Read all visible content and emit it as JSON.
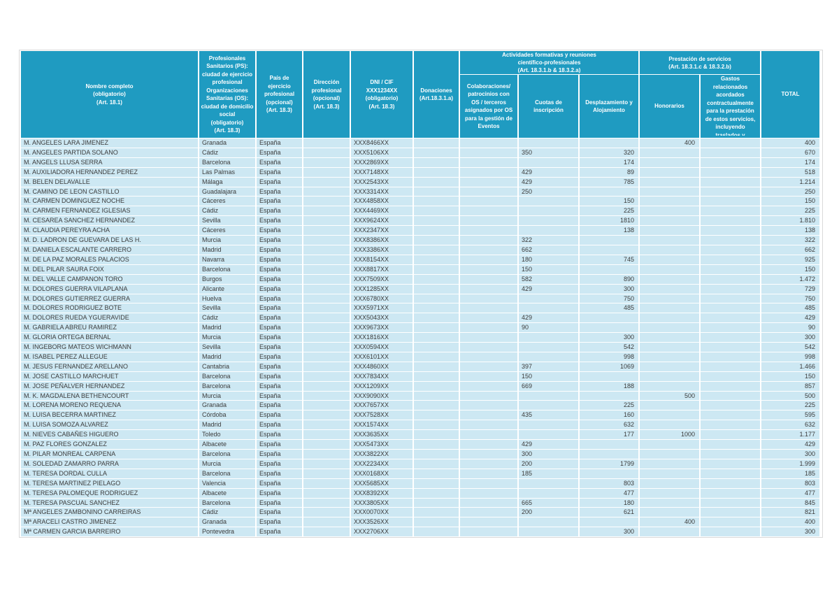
{
  "table": {
    "header": {
      "nombre": "Nombre completo\n(obligatorio)\n(Art. 18.1)",
      "ps_os": "Profesionales\nSanitarios (PS):\nciudad de ejercicio\nprofesional\nOrganizaciones\nSanitarias (OS):\nciudad de domicilio\nsocial\n(obligatorio)\n(Art. 18.3)",
      "pais": "País de ejercicio\nprofesional\n(opcional)\n(Art. 18.3)",
      "direccion": "Dirección\nprofesional\n(opcional)\n(Art. 18.3)",
      "dni": "DNI / CIF\nXXX1234XX\n(obligatorio)\n(Art. 18.3)",
      "donaciones": "Donaciones\n(Art.18.3.1.a)",
      "grupo_actividades": "Actividades formativas y reuniones\ncientífico-profesionales\n(Art. 18.3.1.b & 18.3.2.a)",
      "colaboraciones": "Colaboraciones/\npatrocinios con\nOS / terceros\nasignados por OS\npara la gestión de\nEventos",
      "cuotas": "Cuotas de\ninscripción",
      "desplazamiento": "Desplazamiento y\nAlojamiento",
      "grupo_prestacion": "Prestación de servicios\n(Art. 18.3.1.c & 18.3.2.b)",
      "honorarios": "Honorarios",
      "gastos": "Gastos\nrelacionados\nacordados\ncontractualmente\npara la prestación\nde estos servicios,\nincluyendo\ntraslados y",
      "total": "TOTAL"
    },
    "column_keys": [
      "nombre",
      "ciudad",
      "pais",
      "direccion",
      "dni",
      "donaciones",
      "colaboraciones",
      "cuotas",
      "desplazamiento",
      "honorarios",
      "gastos",
      "total"
    ],
    "rows": [
      [
        "M. ANGELES LARA JIMENEZ",
        "Granada",
        "España",
        "",
        "XXX8466XX",
        "",
        "",
        "",
        "",
        "400",
        "",
        "400"
      ],
      [
        "M. ANGELES PARTIDA SOLANO",
        "Cádiz",
        "España",
        "",
        "XXX5106XX",
        "",
        "",
        "350",
        "320",
        "",
        "",
        "670"
      ],
      [
        "M. ANGELS LLUSA SERRA",
        "Barcelona",
        "España",
        "",
        "XXX2869XX",
        "",
        "",
        "",
        "174",
        "",
        "",
        "174"
      ],
      [
        "M. AUXILIADORA HERNANDEZ PEREZ",
        "Las Palmas",
        "España",
        "",
        "XXX7148XX",
        "",
        "",
        "429",
        "89",
        "",
        "",
        "518"
      ],
      [
        "M. BELEN DELAVALLE",
        "Málaga",
        "España",
        "",
        "XXX2543XX",
        "",
        "",
        "429",
        "785",
        "",
        "",
        "1.214"
      ],
      [
        "M. CAMINO DE LEON CASTILLO",
        "Guadalajara",
        "España",
        "",
        "XXX3314XX",
        "",
        "",
        "250",
        "",
        "",
        "",
        "250"
      ],
      [
        "M. CARMEN DOMINGUEZ NOCHE",
        "Cáceres",
        "España",
        "",
        "XXX4858XX",
        "",
        "",
        "",
        "150",
        "",
        "",
        "150"
      ],
      [
        "M. CARMEN FERNANDEZ IGLESIAS",
        "Cádiz",
        "España",
        "",
        "XXX4469XX",
        "",
        "",
        "",
        "225",
        "",
        "",
        "225"
      ],
      [
        "M. CESAREA SANCHEZ HERNANDEZ",
        "Sevilla",
        "España",
        "",
        "XXX9624XX",
        "",
        "",
        "",
        "1810",
        "",
        "",
        "1.810"
      ],
      [
        "M. CLAUDIA PEREYRA ACHA",
        "Cáceres",
        "España",
        "",
        "XXX2347XX",
        "",
        "",
        "",
        "138",
        "",
        "",
        "138"
      ],
      [
        "M. D. LADRON DE GUEVARA DE LAS H.",
        "Murcia",
        "España",
        "",
        "XXX8386XX",
        "",
        "",
        "322",
        "",
        "",
        "",
        "322"
      ],
      [
        "M. DANIELA ESCALANTE CARRERO",
        "Madrid",
        "España",
        "",
        "XXX3386XX",
        "",
        "",
        "662",
        "",
        "",
        "",
        "662"
      ],
      [
        "M. DE LA PAZ MORALES PALACIOS",
        "Navarra",
        "España",
        "",
        "XXX8154XX",
        "",
        "",
        "180",
        "745",
        "",
        "",
        "925"
      ],
      [
        "M. DEL PILAR SAURA FOIX",
        "Barcelona",
        "España",
        "",
        "XXX8817XX",
        "",
        "",
        "150",
        "",
        "",
        "",
        "150"
      ],
      [
        "M. DEL VALLE CAMPANON TORO",
        "Burgos",
        "España",
        "",
        "XXX7509XX",
        "",
        "",
        "582",
        "890",
        "",
        "",
        "1.472"
      ],
      [
        "M. DOLORES GUERRA VILAPLANA",
        "Alicante",
        "España",
        "",
        "XXX1285XX",
        "",
        "",
        "429",
        "300",
        "",
        "",
        "729"
      ],
      [
        "M. DOLORES GUTIERREZ GUERRA",
        "Huelva",
        "España",
        "",
        "XXX6780XX",
        "",
        "",
        "",
        "750",
        "",
        "",
        "750"
      ],
      [
        "M. DOLORES RODRIGUEZ BOTE",
        "Sevilla",
        "España",
        "",
        "XXX5971XX",
        "",
        "",
        "",
        "485",
        "",
        "",
        "485"
      ],
      [
        "M. DOLORES RUEDA YGUERAVIDE",
        "Cádiz",
        "España",
        "",
        "XXX5043XX",
        "",
        "",
        "429",
        "",
        "",
        "",
        "429"
      ],
      [
        "M. GABRIELA ABREU RAMIREZ",
        "Madrid",
        "España",
        "",
        "XXX9673XX",
        "",
        "",
        "90",
        "",
        "",
        "",
        "90"
      ],
      [
        "M. GLORIA ORTEGA BERNAL",
        "Murcia",
        "España",
        "",
        "XXX1816XX",
        "",
        "",
        "",
        "300",
        "",
        "",
        "300"
      ],
      [
        "M. INGEBORG MATEOS WICHMANN",
        "Sevilla",
        "España",
        "",
        "XXX0594XX",
        "",
        "",
        "",
        "542",
        "",
        "",
        "542"
      ],
      [
        "M. ISABEL PEREZ ALLEGUE",
        "Madrid",
        "España",
        "",
        "XXX6101XX",
        "",
        "",
        "",
        "998",
        "",
        "",
        "998"
      ],
      [
        "M. JESUS FERNANDEZ ARELLANO",
        "Cantabria",
        "España",
        "",
        "XXX4860XX",
        "",
        "",
        "397",
        "1069",
        "",
        "",
        "1.466"
      ],
      [
        "M. JOSE CASTILLO MARCHUET",
        "Barcelona",
        "España",
        "",
        "XXX7834XX",
        "",
        "",
        "150",
        "",
        "",
        "",
        "150"
      ],
      [
        "M. JOSE PEÑALVER HERNANDEZ",
        "Barcelona",
        "España",
        "",
        "XXX1209XX",
        "",
        "",
        "669",
        "188",
        "",
        "",
        "857"
      ],
      [
        "M. K. MAGDALENA BETHENCOURT",
        "Murcia",
        "España",
        "",
        "XXX9090XX",
        "",
        "",
        "",
        "",
        "500",
        "",
        "500"
      ],
      [
        "M. LORENA MORENO REQUENA",
        "Granada",
        "España",
        "",
        "XXX7657XX",
        "",
        "",
        "",
        "225",
        "",
        "",
        "225"
      ],
      [
        "M. LUISA BECERRA MARTINEZ",
        "Córdoba",
        "España",
        "",
        "XXX7528XX",
        "",
        "",
        "435",
        "160",
        "",
        "",
        "595"
      ],
      [
        "M. LUISA SOMOZA ALVAREZ",
        "Madrid",
        "España",
        "",
        "XXX1574XX",
        "",
        "",
        "",
        "632",
        "",
        "",
        "632"
      ],
      [
        "M. NIEVES CABAÑES HIGUERO",
        "Toledo",
        "España",
        "",
        "XXX3635XX",
        "",
        "",
        "",
        "177",
        "1000",
        "",
        "1.177"
      ],
      [
        "M. PAZ FLORES GONZALEZ",
        "Albacete",
        "España",
        "",
        "XXX5473XX",
        "",
        "",
        "429",
        "",
        "",
        "",
        "429"
      ],
      [
        "M. PILAR MONREAL CARPENA",
        "Barcelona",
        "España",
        "",
        "XXX3822XX",
        "",
        "",
        "300",
        "",
        "",
        "",
        "300"
      ],
      [
        "M. SOLEDAD ZAMARRO PARRA",
        "Murcia",
        "España",
        "",
        "XXX2234XX",
        "",
        "",
        "200",
        "1799",
        "",
        "",
        "1.999"
      ],
      [
        "M. TERESA DORDAL CULLA",
        "Barcelona",
        "España",
        "",
        "XXX0168XX",
        "",
        "",
        "185",
        "",
        "",
        "",
        "185"
      ],
      [
        "M. TERESA MARTINEZ PIELAGO",
        "Valencia",
        "España",
        "",
        "XXX5685XX",
        "",
        "",
        "",
        "803",
        "",
        "",
        "803"
      ],
      [
        "M. TERESA PALOMEQUE RODRIGUEZ",
        "Albacete",
        "España",
        "",
        "XXX8392XX",
        "",
        "",
        "",
        "477",
        "",
        "",
        "477"
      ],
      [
        "M. TERESA PASCUAL SANCHEZ",
        "Barcelona",
        "España",
        "",
        "XXX3805XX",
        "",
        "",
        "665",
        "180",
        "",
        "",
        "845"
      ],
      [
        "Mª ANGELES ZAMBONINO CARREIRAS",
        "Cádiz",
        "España",
        "",
        "XXX0070XX",
        "",
        "",
        "200",
        "621",
        "",
        "",
        "821"
      ],
      [
        "Mª ARACELI CASTRO JIMENEZ",
        "Granada",
        "España",
        "",
        "XXX3526XX",
        "",
        "",
        "",
        "",
        "400",
        "",
        "400"
      ],
      [
        "Mª CARMEN GARCIA BARREIRO",
        "Pontevedra",
        "España",
        "",
        "XXX2706XX",
        "",
        "",
        "",
        "300",
        "",
        "",
        "300"
      ]
    ],
    "colors": {
      "header_bg": "#1f9bc1",
      "row_bg": "#cde8f3",
      "header_text": "#ffffff",
      "row_text": "#3c3c3c"
    }
  }
}
